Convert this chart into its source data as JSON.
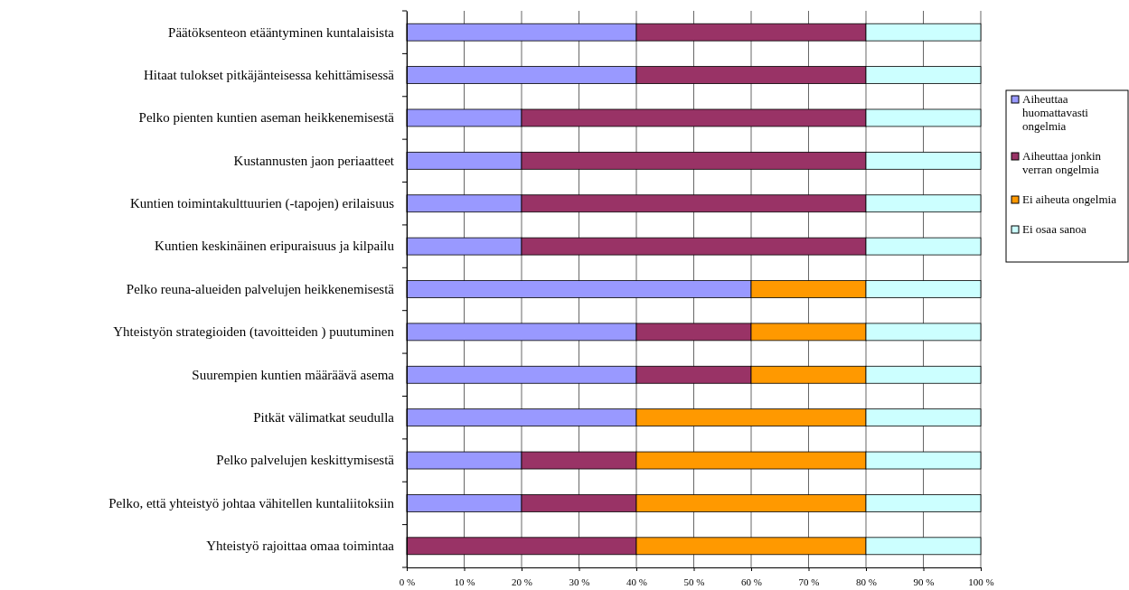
{
  "chart_data": {
    "type": "bar",
    "orientation": "horizontal",
    "stacked": true,
    "categories": [
      "Päätöksenteon etääntyminen kuntalaisista",
      "Hitaat tulokset pitkäjänteisessa kehittämisessä",
      "Pelko pienten kuntien aseman heikkenemisestä",
      "Kustannusten jaon periaatteet",
      "Kuntien toimintakulttuurien (-tapojen) erilaisuus",
      "Kuntien keskinäinen eripuraisuus ja kilpailu",
      "Pelko reuna-alueiden palvelujen heikkenemisestä",
      "Yhteistyön strategioiden (tavoitteiden ) puutuminen",
      "Suurempien kuntien määräävä asema",
      "Pitkät välimatkat seudulla",
      "Pelko palvelujen keskittymisestä",
      "Pelko, että yhteistyö johtaa vähitellen kuntaliitoksiin",
      "Yhteistyö rajoittaa omaa toimintaa"
    ],
    "series": [
      {
        "name": "Aiheuttaa huomattavasti ongelmia",
        "color": "#9999ff",
        "values": [
          40,
          40,
          20,
          20,
          20,
          20,
          60,
          40,
          40,
          40,
          20,
          20,
          0
        ]
      },
      {
        "name": "Aiheuttaa jonkin verran ongelmia",
        "color": "#993366",
        "values": [
          40,
          40,
          60,
          60,
          60,
          60,
          0,
          20,
          20,
          0,
          20,
          20,
          40
        ]
      },
      {
        "name": "Ei aiheuta ongelmia",
        "color": "#ff9900",
        "values": [
          0,
          0,
          0,
          0,
          0,
          0,
          20,
          20,
          20,
          40,
          40,
          40,
          40
        ]
      },
      {
        "name": "Ei osaa sanoa",
        "color": "#ccffff",
        "values": [
          20,
          20,
          20,
          20,
          20,
          20,
          20,
          20,
          20,
          20,
          20,
          20,
          20
        ]
      }
    ],
    "xlim": [
      0,
      100
    ],
    "xticks": [
      {
        "value": 0,
        "label": "0 %"
      },
      {
        "value": 10,
        "label": "10 %"
      },
      {
        "value": 20,
        "label": "20 %"
      },
      {
        "value": 30,
        "label": "30 %"
      },
      {
        "value": 40,
        "label": "40 %"
      },
      {
        "value": 50,
        "label": "50 %"
      },
      {
        "value": 60,
        "label": "60 %"
      },
      {
        "value": 70,
        "label": "70 %"
      },
      {
        "value": 80,
        "label": "80 %"
      },
      {
        "value": 90,
        "label": "90 %"
      },
      {
        "value": 100,
        "label": "100 %"
      }
    ],
    "grid": "x",
    "legend": "right"
  }
}
